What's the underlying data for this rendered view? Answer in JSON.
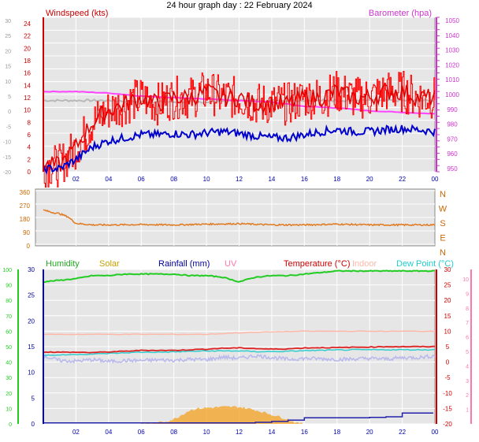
{
  "title": "24 hour graph day : 22 February 2024",
  "colors": {
    "plot_bg": "#e6e6e6",
    "grid": "#ffffff",
    "wind_gust": "#ff0000",
    "wind_avg": "#e00000",
    "wind_dir_avg": "#0000cc",
    "barometer": "#ff44ff",
    "barometer_axis": "#cc33cc",
    "prev_baro": "#b8b8b8",
    "wind_dir": "#e07a20",
    "humidity": "#22cc22",
    "solar": "#f4a020",
    "rainfall": "#2222aa",
    "uv": "#ff77aa",
    "temperature": "#dd2222",
    "indoor": "#ffb8a8",
    "dewpoint": "#33cccc",
    "lowtemp": "#b8b8ee",
    "axis_label": "#0000aa",
    "cardinal": "#cc6600"
  },
  "chart_data": [
    {
      "type": "line",
      "name": "wind-barometer",
      "title": "Windspeed (kts)",
      "right_title": "Barometer (hpa)",
      "x_ticks": [
        "02",
        "04",
        "06",
        "08",
        "10",
        "12",
        "14",
        "16",
        "18",
        "20",
        "22",
        "00"
      ],
      "left_ticks_kts": [
        "24",
        "22",
        "20",
        "18",
        "16",
        "14",
        "12",
        "10",
        "8",
        "6",
        "4",
        "2",
        "0"
      ],
      "left_ticks_inner": [
        "30",
        "25",
        "20",
        "15",
        "10",
        "5",
        "0",
        "-5",
        "-10",
        "-15",
        "-20"
      ],
      "right_ticks": [
        "1050",
        "1040",
        "1030",
        "1020",
        "1010",
        "1000",
        "990",
        "980",
        "970",
        "960",
        "950"
      ],
      "ylim": [
        0,
        25
      ],
      "right_ylim": [
        947,
        1051
      ],
      "series": [
        {
          "x": [
            0,
            1,
            2,
            3,
            4,
            5,
            6,
            7,
            8,
            9,
            10,
            11,
            12,
            13,
            14,
            15,
            16,
            17,
            18,
            19,
            20,
            21,
            22,
            23,
            24
          ],
          "values": [
            1,
            1,
            4,
            8,
            10,
            11,
            12,
            11,
            12,
            12,
            13,
            12,
            12,
            11,
            11,
            11,
            12,
            12,
            13,
            12,
            12,
            13,
            13,
            12,
            12
          ]
        },
        {
          "x": [
            0,
            1,
            2,
            3,
            4,
            5,
            6,
            7,
            8,
            9,
            10,
            11,
            12,
            13,
            14,
            15,
            16,
            17,
            18,
            19,
            20,
            21,
            22,
            23,
            24
          ],
          "values": [
            0.5,
            0.5,
            2,
            4,
            5,
            5.5,
            6,
            6,
            6.2,
            6,
            6.3,
            6.5,
            6.2,
            5.8,
            5.5,
            5.5,
            6,
            6.5,
            6.8,
            6.5,
            6.5,
            6.8,
            7,
            6.8,
            6.5
          ]
        },
        {
          "x": [
            0,
            2,
            4,
            6,
            8,
            10,
            12,
            14,
            16,
            18,
            20,
            22,
            24
          ],
          "values": [
            1001,
            1001,
            1000,
            998,
            997,
            996,
            995,
            994,
            991,
            990,
            988,
            987,
            986
          ]
        },
        {
          "x": [
            0,
            2,
            4,
            6,
            8,
            10,
            12,
            14,
            16,
            18,
            20,
            22,
            24
          ],
          "values": [
            995,
            995,
            995,
            994,
            994,
            994,
            995,
            995,
            995,
            995,
            995,
            995,
            995
          ]
        }
      ]
    },
    {
      "type": "scatter",
      "name": "wind-direction",
      "x_ticks": [],
      "left_ticks": [
        "360",
        "270",
        "180",
        "90",
        "0"
      ],
      "right_ticks": [
        "N",
        "W",
        "S",
        "E",
        "N"
      ],
      "ylim": [
        0,
        360
      ],
      "series": [
        {
          "x": [
            0,
            0.5,
            1,
            1.5,
            2,
            3,
            4,
            6,
            8,
            10,
            12,
            14,
            16,
            18,
            20,
            22,
            24
          ],
          "values": [
            230,
            215,
            205,
            185,
            140,
            130,
            130,
            132,
            130,
            135,
            138,
            130,
            130,
            135,
            130,
            130,
            130
          ]
        }
      ]
    },
    {
      "type": "line",
      "name": "temperature-humidity",
      "labels": {
        "humidity": "Humidity",
        "solar": "Solar",
        "rainfall": "Rainfall (mm)",
        "uv": "UV",
        "temperature": "Temperature (°C)",
        "indoor": "Indoor",
        "dewpoint": "Dew Point (°C)"
      },
      "x_ticks": [
        "02",
        "04",
        "06",
        "08",
        "10",
        "12",
        "14",
        "16",
        "18",
        "20",
        "22",
        "00"
      ],
      "left_ticks_hum": [
        "100",
        "90",
        "80",
        "70",
        "60",
        "50",
        "40",
        "30",
        "20",
        "10",
        "0"
      ],
      "left_ticks_rain": [
        "30",
        "25",
        "20",
        "15",
        "10",
        "5",
        "0"
      ],
      "right_ticks_uv": [
        "10",
        "9",
        "8",
        "7",
        "6",
        "5",
        "4",
        "3",
        "2",
        "1"
      ],
      "right_ticks_temp": [
        "30",
        "25",
        "20",
        "15",
        "10",
        "5",
        "0",
        "-5",
        "-10",
        "-15",
        "-20"
      ],
      "ylim": [
        -20,
        30
      ],
      "series": [
        {
          "x": [
            0,
            1,
            2,
            3,
            4,
            5,
            6,
            7,
            8,
            9,
            10,
            11,
            12,
            13,
            14,
            15,
            16,
            17,
            18,
            19,
            20,
            21,
            22,
            23,
            24
          ],
          "values": [
            3.3,
            3.2,
            3.2,
            3.1,
            3.3,
            3.5,
            3.8,
            3.8,
            3.8,
            4.0,
            4.2,
            4.5,
            4.6,
            4.4,
            4.2,
            4.3,
            4.6,
            4.7,
            4.7,
            4.8,
            4.9,
            5.0,
            5.0,
            5.0,
            5.0
          ]
        },
        {
          "x": [
            0,
            2,
            4,
            6,
            8,
            10,
            12,
            14,
            16,
            18,
            20,
            22,
            24
          ],
          "values": [
            9,
            9,
            9,
            9,
            9,
            9,
            9.5,
            9.8,
            10,
            10,
            10,
            10,
            10
          ]
        },
        {
          "x": [
            0,
            1,
            2,
            3,
            4,
            5,
            6,
            7,
            8,
            9,
            10,
            11,
            12,
            13,
            14,
            15,
            16,
            17,
            18,
            19,
            20,
            21,
            22,
            23,
            24
          ],
          "values": [
            2.2,
            2.3,
            2.5,
            2.6,
            2.8,
            3.0,
            3.2,
            3.2,
            3.3,
            3.5,
            3.6,
            3.6,
            3.6,
            3.4,
            3.4,
            3.5,
            3.7,
            3.8,
            3.9,
            4.0,
            4.0,
            4.0,
            4.0,
            4.0,
            4.0
          ]
        },
        {
          "x": [
            0,
            1,
            2,
            3,
            4,
            5,
            6,
            7,
            8,
            9,
            10,
            11,
            12,
            13,
            14,
            15,
            16,
            17,
            18,
            19,
            20,
            21,
            22,
            23,
            24
          ],
          "values": [
            2.0,
            0.5,
            0.3,
            0.8,
            0.2,
            0.5,
            0.5,
            0.7,
            0.6,
            0.9,
            0.8,
            1.6,
            1.2,
            2.1,
            1.5,
            0.9,
            1.2,
            1.1,
            0.9,
            1.0,
            1.2,
            1.0,
            1.4,
            1.5,
            2.0
          ]
        }
      ],
      "humidity": {
        "x": [
          0,
          1,
          2,
          3,
          4,
          5,
          6,
          7,
          8,
          9,
          10,
          11,
          12,
          13,
          14,
          15,
          16,
          17,
          18,
          19,
          20,
          21,
          22,
          23,
          24
        ],
        "values": [
          92,
          93,
          94,
          96,
          96,
          97,
          97,
          97,
          97,
          96,
          96,
          95,
          92,
          95,
          96,
          96,
          97,
          98,
          99,
          99,
          99,
          99,
          99,
          99,
          99
        ]
      },
      "solar": {
        "x": [
          6,
          7,
          7.5,
          8,
          8.5,
          9,
          9.5,
          10,
          11,
          12,
          13,
          14,
          15,
          15.5,
          16
        ],
        "values": [
          0,
          0.3,
          0.8,
          1.5,
          3,
          4.5,
          5,
          5.2,
          5.5,
          5.5,
          4.5,
          3,
          1.5,
          0.3,
          0
        ]
      },
      "rainfall": {
        "x": [
          0,
          6,
          12,
          13,
          14,
          15,
          16,
          17,
          18,
          19,
          20,
          21,
          22,
          23,
          23.9
        ],
        "values": [
          0.3,
          0.3,
          0.3,
          0.5,
          0.8,
          1.2,
          2.0,
          2.0,
          2.0,
          2.0,
          2.1,
          2.3,
          3.5,
          3.5,
          3.5
        ]
      }
    }
  ]
}
